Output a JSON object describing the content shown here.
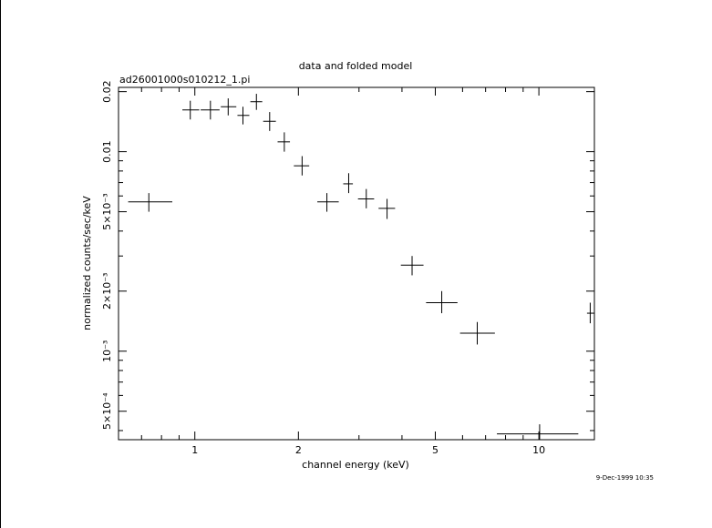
{
  "chart_data": {
    "type": "scatter",
    "title": "data and folded model",
    "subtitle": "ad26001000s010212_1.pi",
    "xlabel": "channel energy (keV)",
    "ylabel": "normalized counts/sec/keV",
    "timestamp": "9-Dec-1999 10:35",
    "x_scale": "log",
    "y_scale": "log",
    "xlim": [
      0.6,
      14.5
    ],
    "ylim": [
      0.00036,
      0.021
    ],
    "x_tick_labels": [
      "1",
      "2",
      "5",
      "10"
    ],
    "y_tick_labels": [
      "0.02",
      "0.01",
      "5×10⁻³",
      "2×10⁻³",
      "10⁻³",
      "5×10⁻⁴"
    ],
    "series": [
      {
        "points": [
          {
            "x": 0.735,
            "xlo": 0.64,
            "xhi": 0.86,
            "y": 0.0056,
            "ylo": 0.005,
            "yhi": 0.0062
          },
          {
            "x": 0.97,
            "xlo": 0.92,
            "xhi": 1.03,
            "y": 0.0162,
            "ylo": 0.0145,
            "yhi": 0.018
          },
          {
            "x": 1.11,
            "xlo": 1.04,
            "xhi": 1.18,
            "y": 0.0162,
            "ylo": 0.0145,
            "yhi": 0.018
          },
          {
            "x": 1.25,
            "xlo": 1.19,
            "xhi": 1.32,
            "y": 0.0168,
            "ylo": 0.0152,
            "yhi": 0.0185
          },
          {
            "x": 1.38,
            "xlo": 1.33,
            "xhi": 1.44,
            "y": 0.0152,
            "ylo": 0.0137,
            "yhi": 0.0168
          },
          {
            "x": 1.51,
            "xlo": 1.45,
            "xhi": 1.57,
            "y": 0.0178,
            "ylo": 0.0162,
            "yhi": 0.0195
          },
          {
            "x": 1.65,
            "xlo": 1.58,
            "xhi": 1.72,
            "y": 0.0142,
            "ylo": 0.0127,
            "yhi": 0.0158
          },
          {
            "x": 1.82,
            "xlo": 1.74,
            "xhi": 1.89,
            "y": 0.0112,
            "ylo": 0.01,
            "yhi": 0.0125
          },
          {
            "x": 2.05,
            "xlo": 1.94,
            "xhi": 2.15,
            "y": 0.0085,
            "ylo": 0.0076,
            "yhi": 0.0095
          },
          {
            "x": 2.42,
            "xlo": 2.27,
            "xhi": 2.62,
            "y": 0.0056,
            "ylo": 0.005,
            "yhi": 0.0062
          },
          {
            "x": 2.8,
            "xlo": 2.7,
            "xhi": 2.88,
            "y": 0.0069,
            "ylo": 0.0062,
            "yhi": 0.0078
          },
          {
            "x": 3.15,
            "xlo": 2.98,
            "xhi": 3.32,
            "y": 0.0058,
            "ylo": 0.0052,
            "yhi": 0.0065
          },
          {
            "x": 3.62,
            "xlo": 3.42,
            "xhi": 3.82,
            "y": 0.0052,
            "ylo": 0.0046,
            "yhi": 0.0058
          },
          {
            "x": 4.28,
            "xlo": 3.97,
            "xhi": 4.62,
            "y": 0.0027,
            "ylo": 0.0024,
            "yhi": 0.003
          },
          {
            "x": 5.22,
            "xlo": 4.7,
            "xhi": 5.8,
            "y": 0.00175,
            "ylo": 0.00155,
            "yhi": 0.002
          },
          {
            "x": 6.62,
            "xlo": 5.9,
            "xhi": 7.45,
            "y": 0.00123,
            "ylo": 0.00108,
            "yhi": 0.0014
          },
          {
            "x": 10.05,
            "xlo": 7.55,
            "xhi": 13.02,
            "y": 0.000385,
            "ylo": 0.00036,
            "yhi": 0.00043
          },
          {
            "x": 14.1,
            "xlo": 13.8,
            "xhi": 14.5,
            "y": 0.00155,
            "ylo": 0.00138,
            "yhi": 0.00175
          }
        ]
      }
    ]
  }
}
